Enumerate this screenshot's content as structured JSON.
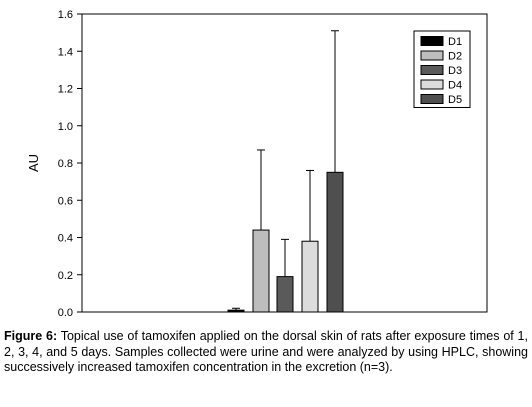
{
  "chart_data": {
    "type": "bar",
    "ylabel": "AU",
    "xlabel": "",
    "ylim": [
      0,
      1.6
    ],
    "yticks": [
      "0.0",
      "0.2",
      "0.4",
      "0.6",
      "0.8",
      "1.0",
      "1.2",
      "1.4",
      "1.6"
    ],
    "grid": false,
    "legend_position": "top-right",
    "series": [
      {
        "name": "D1",
        "value": 0.01,
        "error": 0.01,
        "color": "#000000"
      },
      {
        "name": "D2",
        "value": 0.44,
        "error": 0.43,
        "color": "#bdbdbd"
      },
      {
        "name": "D3",
        "value": 0.19,
        "error": 0.2,
        "color": "#5a5a5a"
      },
      {
        "name": "D4",
        "value": 0.38,
        "error": 0.38,
        "color": "#dcdcdc"
      },
      {
        "name": "D5",
        "value": 0.75,
        "error": 0.76,
        "color": "#4f4f4f"
      }
    ]
  },
  "caption": {
    "label": "Figure 6:",
    "text": " Topical use of tamoxifen applied on the dorsal skin of rats after exposure times of 1, 2, 3, 4, and 5 days. Samples collected were urine and were analyzed by using HPLC, showing successively increased tamoxifen concentration in the excretion (n=3)."
  }
}
